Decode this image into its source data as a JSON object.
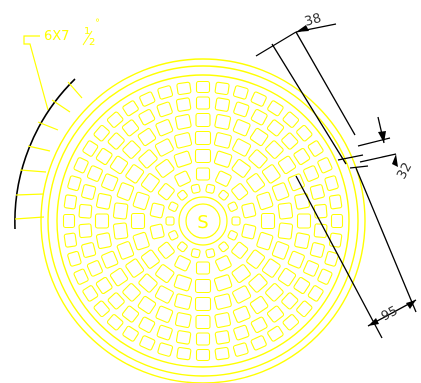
{
  "labels": {
    "center": "S",
    "callout_main": "6X7",
    "callout_frac_num": "1",
    "callout_frac_den": "2",
    "callout_deg": "°",
    "dim_top": "38",
    "dim_right": "32",
    "dim_bottom": "95"
  },
  "colors": {
    "drawing": "#ffff00",
    "dimension": "#000000",
    "background": "#ffffff"
  }
}
